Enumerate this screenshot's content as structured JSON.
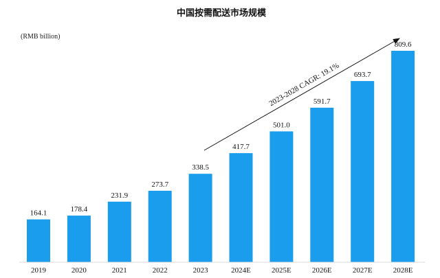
{
  "chart_data": {
    "type": "bar",
    "title": "中国按需配送市场规模",
    "ylabel": "(RMB billion)",
    "categories": [
      "2019",
      "2020",
      "2021",
      "2022",
      "2023",
      "2024E",
      "2025E",
      "2026E",
      "2027E",
      "2028E"
    ],
    "values": [
      164.1,
      178.4,
      231.9,
      273.7,
      338.5,
      417.7,
      501.0,
      591.7,
      693.7,
      809.6
    ],
    "value_labels": [
      "164.1",
      "178.4",
      "231.9",
      "273.7",
      "338.5",
      "417.7",
      "501.0",
      "591.7",
      "693.7",
      "809.6"
    ],
    "ylim": [
      0,
      809.6
    ],
    "grid": false,
    "bar_color": "#1a9ded",
    "annotation": {
      "text": "2023-2028 CAGR: 19.1%",
      "from_category": "2023",
      "to_category": "2028E"
    }
  }
}
